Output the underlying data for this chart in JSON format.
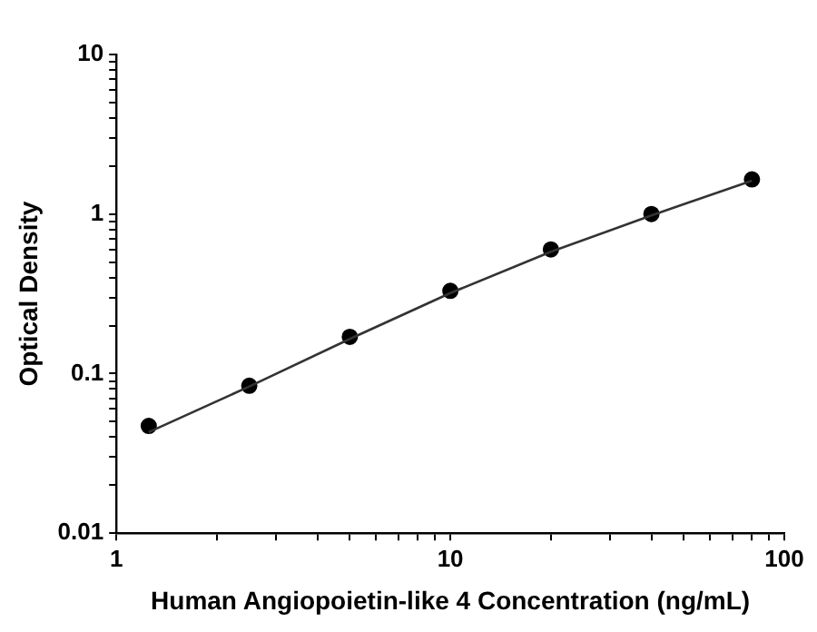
{
  "chart_data": {
    "type": "scatter",
    "xlabel": "Human Angiopoietin-like 4 Concentration (ng/mL)",
    "ylabel": "Optical Density",
    "log": "xy",
    "grid": false,
    "legend": false,
    "xlim": [
      1,
      100
    ],
    "ylim": [
      0.01,
      10
    ],
    "xticks": [
      1,
      {
        "value": 2,
        "label": null
      },
      {
        "value": 3,
        "label": null
      },
      {
        "value": 4,
        "label": null
      },
      {
        "value": 5,
        "label": null
      },
      {
        "value": 6,
        "label": null
      },
      {
        "value": 7,
        "label": null
      },
      {
        "value": 8,
        "label": null
      },
      {
        "value": 9,
        "label": null
      },
      10,
      {
        "value": 20,
        "label": null
      },
      {
        "value": 30,
        "label": null
      },
      {
        "value": 40,
        "label": null
      },
      {
        "value": 50,
        "label": null
      },
      {
        "value": 60,
        "label": null
      },
      {
        "value": 70,
        "label": null
      },
      {
        "value": 80,
        "label": null
      },
      {
        "value": 90,
        "label": null
      },
      100
    ],
    "yticks": [
      0.01,
      {
        "value": 0.02,
        "label": null
      },
      {
        "value": 0.03,
        "label": null
      },
      {
        "value": 0.04,
        "label": null
      },
      {
        "value": 0.05,
        "label": null
      },
      {
        "value": 0.06,
        "label": null
      },
      {
        "value": 0.07,
        "label": null
      },
      {
        "value": 0.08,
        "label": null
      },
      {
        "value": 0.09,
        "label": null
      },
      0.1,
      {
        "value": 0.2,
        "label": null
      },
      {
        "value": 0.3,
        "label": null
      },
      {
        "value": 0.4,
        "label": null
      },
      {
        "value": 0.5,
        "label": null
      },
      {
        "value": 0.6,
        "label": null
      },
      {
        "value": 0.7,
        "label": null
      },
      {
        "value": 0.8,
        "label": null
      },
      {
        "value": 0.9,
        "label": null
      },
      1,
      {
        "value": 2,
        "label": null
      },
      {
        "value": 3,
        "label": null
      },
      {
        "value": 4,
        "label": null
      },
      {
        "value": 5,
        "label": null
      },
      {
        "value": 6,
        "label": null
      },
      {
        "value": 7,
        "label": null
      },
      {
        "value": 8,
        "label": null
      },
      {
        "value": 9,
        "label": null
      },
      10
    ],
    "series": [
      {
        "type": "scatter",
        "marker": "circle",
        "color": "#000000",
        "x": [
          1.25,
          2.5,
          5,
          10,
          20,
          40,
          80
        ],
        "values": [
          0.047,
          0.084,
          0.17,
          0.33,
          0.6,
          1.0,
          1.65
        ]
      },
      {
        "type": "line",
        "marker": "none",
        "line_style": "solid",
        "color": "#333333",
        "x": [
          1.25,
          2.5,
          5,
          10,
          20,
          40,
          80
        ],
        "values": [
          0.043,
          0.083,
          0.165,
          0.32,
          0.58,
          0.98,
          1.62
        ]
      }
    ]
  }
}
